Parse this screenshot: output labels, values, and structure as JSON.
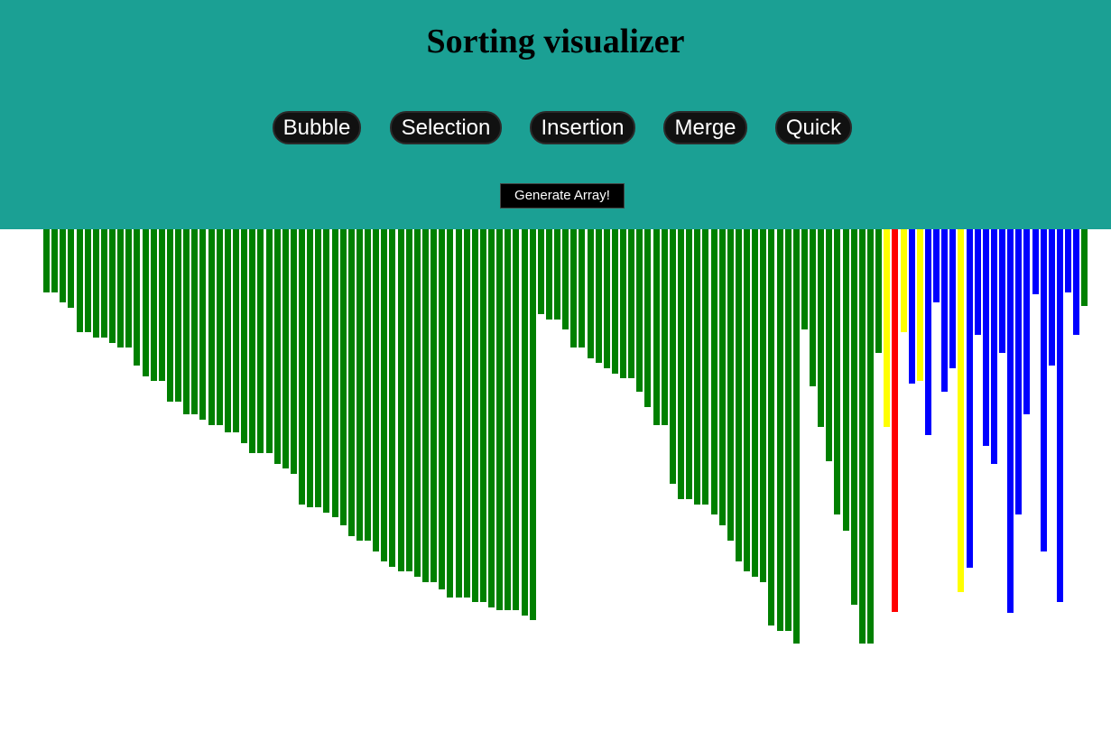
{
  "app": {
    "title": "Sorting visualizer"
  },
  "algorithms": [
    {
      "label": "Bubble"
    },
    {
      "label": "Selection"
    },
    {
      "label": "Insertion"
    },
    {
      "label": "Merge"
    },
    {
      "label": "Quick"
    }
  ],
  "generate": {
    "label": "Generate Array!"
  },
  "colors": {
    "header_background": "#1ba094",
    "button_background": "#111111",
    "sorted": "#008000",
    "unsorted": "#0000ff",
    "comparing": "#ffff00",
    "pivot": "#ff0000"
  },
  "bars": {
    "max_value": 100,
    "states": [
      "sorted",
      "sorted",
      "sorted",
      "sorted",
      "sorted",
      "sorted",
      "sorted",
      "sorted",
      "sorted",
      "sorted",
      "sorted",
      "sorted",
      "sorted",
      "sorted",
      "sorted",
      "sorted",
      "sorted",
      "sorted",
      "sorted",
      "sorted",
      "sorted",
      "sorted",
      "sorted",
      "sorted",
      "sorted",
      "sorted",
      "sorted",
      "sorted",
      "sorted",
      "sorted",
      "sorted",
      "sorted",
      "sorted",
      "sorted",
      "sorted",
      "sorted",
      "sorted",
      "sorted",
      "sorted",
      "sorted",
      "sorted",
      "sorted",
      "sorted",
      "sorted",
      "sorted",
      "sorted",
      "sorted",
      "sorted",
      "sorted",
      "sorted",
      "sorted",
      "sorted",
      "sorted",
      "sorted",
      "sorted",
      "sorted",
      "sorted",
      "sorted",
      "sorted",
      "sorted",
      "sorted",
      "sorted",
      "sorted",
      "sorted",
      "sorted",
      "sorted",
      "sorted",
      "sorted",
      "sorted",
      "sorted",
      "sorted",
      "sorted",
      "sorted",
      "sorted",
      "sorted",
      "sorted",
      "sorted",
      "sorted",
      "sorted",
      "sorted",
      "sorted",
      "sorted",
      "sorted",
      "sorted",
      "sorted",
      "sorted",
      "sorted",
      "sorted",
      "sorted",
      "sorted",
      "sorted",
      "sorted",
      "sorted",
      "sorted",
      "sorted",
      "sorted",
      "sorted",
      "sorted",
      "sorted",
      "sorted",
      "sorted",
      "sorted",
      "comparing",
      "pivot",
      "comparing",
      "unsorted",
      "comparing",
      "unsorted",
      "unsorted",
      "unsorted",
      "unsorted",
      "comparing",
      "unsorted",
      "unsorted",
      "unsorted",
      "unsorted",
      "unsorted",
      "unsorted",
      "unsorted",
      "unsorted",
      "unsorted",
      "unsorted",
      "unsorted",
      "unsorted",
      "unsorted",
      "unsorted"
    ],
    "values": [
      15.1,
      15.1,
      17.5,
      18.8,
      24.7,
      24.7,
      25.9,
      25.9,
      27.2,
      28.4,
      28.4,
      32.7,
      35.2,
      36.4,
      36.4,
      41.4,
      41.4,
      44.4,
      44.4,
      45.7,
      46.9,
      46.9,
      48.8,
      48.8,
      51.2,
      53.7,
      53.7,
      53.7,
      56.2,
      57.4,
      58.6,
      66.0,
      66.7,
      66.7,
      67.9,
      69.1,
      71.0,
      73.5,
      74.7,
      74.7,
      77.2,
      79.6,
      80.9,
      82.1,
      82.1,
      83.3,
      84.6,
      84.6,
      86.4,
      88.3,
      88.3,
      88.3,
      89.5,
      89.5,
      90.7,
      91.4,
      91.4,
      91.4,
      92.6,
      93.8,
      20.4,
      21.6,
      21.6,
      24.1,
      28.4,
      28.4,
      30.9,
      32.1,
      33.3,
      34.6,
      35.8,
      35.8,
      38.9,
      42.6,
      46.9,
      46.9,
      61.1,
      64.8,
      64.8,
      66.0,
      66.0,
      68.5,
      71.0,
      74.7,
      79.6,
      82.1,
      83.3,
      84.6,
      95.1,
      96.3,
      96.3,
      99.4,
      24.1,
      37.7,
      47.5,
      55.6,
      68.5,
      72.2,
      90.1,
      99.4,
      99.4,
      29.6,
      47.5,
      91.7,
      24.7,
      37.0,
      36.4,
      49.4,
      17.6,
      38.9,
      33.3,
      87.0,
      81.2,
      25.3,
      51.9,
      56.2,
      29.6,
      92.0,
      68.5,
      44.4,
      15.5,
      77.2,
      32.7,
      89.5,
      15.1,
      25.3,
      18.5
    ]
  }
}
